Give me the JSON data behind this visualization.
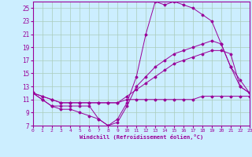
{
  "title": "",
  "xlabel": "Windchill (Refroidissement éolien,°C)",
  "ylabel": "",
  "bg_color": "#cceeff",
  "line_color": "#990099",
  "grid_color": "#aaccbb",
  "xlim": [
    0,
    23
  ],
  "ylim": [
    7,
    26
  ],
  "yticks": [
    7,
    9,
    11,
    13,
    15,
    17,
    19,
    21,
    23,
    25
  ],
  "xticks": [
    0,
    1,
    2,
    3,
    4,
    5,
    6,
    7,
    8,
    9,
    10,
    11,
    12,
    13,
    14,
    15,
    16,
    17,
    18,
    19,
    20,
    21,
    22,
    23
  ],
  "series": [
    {
      "x": [
        0,
        1,
        2,
        3,
        4,
        5,
        6,
        7,
        8,
        9,
        10,
        11,
        12,
        13,
        14,
        15,
        16,
        17,
        18,
        19,
        20,
        21,
        22,
        23
      ],
      "y": [
        12,
        11,
        10,
        10,
        10,
        10,
        10,
        8,
        7,
        8,
        10.5,
        14.5,
        21,
        26,
        25.5,
        26,
        25.5,
        25,
        24,
        23,
        19.5,
        16,
        13,
        12
      ]
    },
    {
      "x": [
        0,
        1,
        2,
        3,
        4,
        5,
        6,
        7,
        8,
        9,
        10,
        11,
        12,
        13,
        14,
        15,
        16,
        17,
        18,
        19,
        20,
        21,
        22,
        23
      ],
      "y": [
        12,
        11,
        10,
        9.5,
        9.5,
        9,
        8.5,
        8,
        7,
        7.5,
        10,
        13,
        14.5,
        16,
        17,
        18,
        18.5,
        19,
        19.5,
        20,
        19.5,
        16,
        14,
        12
      ]
    },
    {
      "x": [
        0,
        1,
        2,
        3,
        4,
        5,
        6,
        7,
        8,
        9,
        10,
        11,
        12,
        13,
        14,
        15,
        16,
        17,
        18,
        19,
        20,
        21,
        22,
        23
      ],
      "y": [
        12,
        11.5,
        11,
        10.5,
        10.5,
        10.5,
        10.5,
        10.5,
        10.5,
        10.5,
        11,
        11,
        11,
        11,
        11,
        11,
        11,
        11,
        11.5,
        11.5,
        11.5,
        11.5,
        11.5,
        11.5
      ]
    },
    {
      "x": [
        0,
        1,
        2,
        3,
        4,
        5,
        6,
        7,
        8,
        9,
        10,
        11,
        12,
        13,
        14,
        15,
        16,
        17,
        18,
        19,
        20,
        21,
        22,
        23
      ],
      "y": [
        12,
        11.5,
        11,
        10.5,
        10.5,
        10.5,
        10.5,
        10.5,
        10.5,
        10.5,
        11.5,
        12.5,
        13.5,
        14.5,
        15.5,
        16.5,
        17,
        17.5,
        18,
        18.5,
        18.5,
        18,
        13,
        12
      ]
    }
  ]
}
